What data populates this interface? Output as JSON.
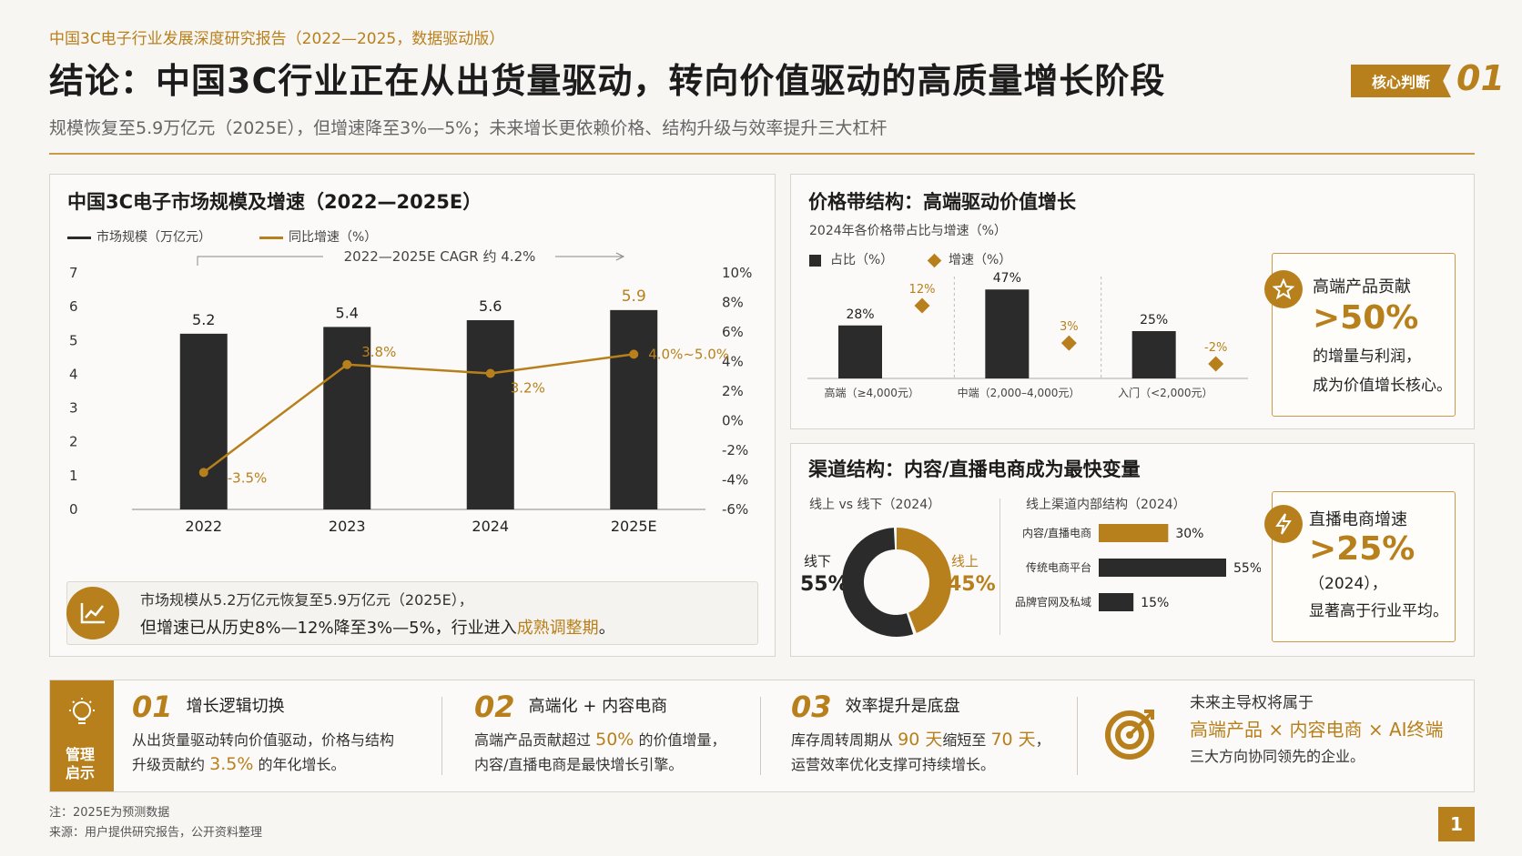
{
  "header": {
    "kicker": "中国3C电子行业发展深度研究报告（2022—2025，数据驱动版）",
    "title": "结论：中国3C行业正在从出货量驱动，转向价值驱动的高质量增长阶段",
    "badge": "核心判断",
    "badge_num": "01",
    "subtitle": "规模恢复至5.9万亿元（2025E），但增速降至3%—5%；未来增长更依赖价格、结构升级与效率提升三大杠杆"
  },
  "market_panel": {
    "title": "中国3C电子市场规模及增速（2022—2025E）",
    "legend_size": "市场规模（万亿元）",
    "legend_growth": "同比增速（%）",
    "cagr": "2022—2025E CAGR 约 4.2%",
    "summary_line1": "市场规模从5.2万亿元恢复至5.9万亿元（2025E），",
    "summary_line2a": "但增速已从历史8%—12%降至3%—5%，行业进入",
    "summary_line2b": "成熟调整期",
    "summary_line2c": "。"
  },
  "price_panel": {
    "title": "价格带结构：高端驱动价值增长",
    "subtitle": "2024年各价格带占比与增速（%）",
    "legend_share": "占比（%）",
    "legend_growth": "增速（%）",
    "callout_title": "高端产品贡献",
    "callout_big": ">50%",
    "callout_l1": "的增量与利润，",
    "callout_l2": "成为价值增长核心。"
  },
  "channel_panel": {
    "title": "渠道结构：内容/直播电商成为最快变量",
    "left_sub": "线上 vs 线下（2024）",
    "right_sub": "线上渠道内部结构（2024）",
    "offline_label": "线下",
    "offline_value": "55%",
    "online_label": "线上",
    "online_value": "45%",
    "callout_title": "直播电商增速",
    "callout_big": ">25%",
    "callout_l1": "（2024），",
    "callout_l2": "显著高于行业平均。"
  },
  "chart_data": [
    {
      "type": "bar",
      "title": "中国3C电子市场规模及增速（2022—2025E）",
      "categories": [
        "2022",
        "2023",
        "2024",
        "2025E"
      ],
      "series": [
        {
          "name": "市场规模（万亿元）",
          "values": [
            5.2,
            5.4,
            5.6,
            5.9
          ],
          "labels": [
            "5.2",
            "5.4",
            "5.6",
            "5.9"
          ]
        },
        {
          "name": "同比增速（%）",
          "type": "line",
          "values": [
            -3.5,
            3.8,
            3.2,
            4.5
          ],
          "labels": [
            "-3.5%",
            "3.8%",
            "3.2%",
            "4.0%~5.0%"
          ]
        }
      ],
      "ylim": [
        0,
        7
      ],
      "yticks": [
        "0",
        "1",
        "2",
        "3",
        "4",
        "5",
        "6",
        "7"
      ],
      "y2lim": [
        -6,
        10
      ],
      "y2ticks": [
        "-6%",
        "-4%",
        "-2%",
        "0%",
        "2%",
        "4%",
        "6%",
        "8%",
        "10%"
      ],
      "colors": {
        "bar": "#2b2b2b",
        "line": "#b8801c"
      }
    },
    {
      "type": "bar",
      "title": "2024年各价格带占比与增速（%）",
      "categories": [
        "高端（≥4,000元）",
        "中端（2,000–4,000元）",
        "入门（<2,000元）"
      ],
      "series": [
        {
          "name": "占比（%）",
          "values": [
            28,
            47,
            25
          ],
          "labels": [
            "28%",
            "47%",
            "25%"
          ]
        },
        {
          "name": "增速（%）",
          "type": "scatter",
          "values": [
            12,
            3,
            -2
          ],
          "labels": [
            "12%",
            "3%",
            "-2%"
          ]
        }
      ]
    },
    {
      "type": "pie",
      "title": "线上 vs 线下（2024）",
      "categories": [
        "线下",
        "线上"
      ],
      "values": [
        55,
        45
      ],
      "colors": [
        "#2b2b2b",
        "#b8801c"
      ]
    },
    {
      "type": "bar",
      "title": "线上渠道内部结构（2024）",
      "categories": [
        "内容/直播电商",
        "传统电商平台",
        "品牌官网及私域"
      ],
      "values": [
        30,
        55,
        15
      ],
      "labels": [
        "30%",
        "55%",
        "15%"
      ]
    }
  ],
  "bottom": {
    "label": "管理启示",
    "items": [
      {
        "num": "01",
        "title": "增长逻辑切换",
        "l1": "从出货量驱动转向价值驱动，价格与结构",
        "l2a": "升级贡献约",
        "l2b": "3.5%",
        "l2c": "的年化增长。"
      },
      {
        "num": "02",
        "title": "高端化 + 内容电商",
        "l1a": "高端产品贡献超过",
        "l1b": "50%",
        "l1c": "的价值增量，",
        "l2": "内容/直播电商是最快增长引擎。"
      },
      {
        "num": "03",
        "title": "效率提升是底盘",
        "l1a": "库存周转周期从",
        "l1b": "90 天",
        "l1c": "缩短至",
        "l1d": "70 天",
        "l1e": "，",
        "l2": "运营效率优化支撑可持续增长。"
      }
    ],
    "final_l1": "未来主导权将属于",
    "final_hl": "高端产品 × 内容电商 × AI终端",
    "final_l3": "三大方向协同领先的企业。"
  },
  "notes": {
    "note": "注：2025E为预测数据",
    "source": "来源：用户提供研究报告，公开资料整理"
  },
  "page_number": "1"
}
